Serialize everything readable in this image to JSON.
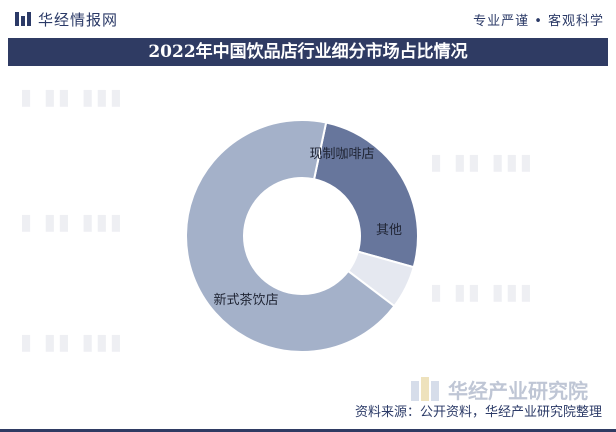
{
  "header": {
    "brand": "华经情报网",
    "slogan": "专业严谨 • 客观科学"
  },
  "chart_data": {
    "type": "pie",
    "title": "2022年中国饮品店行业细分市场占比情况",
    "categories": [
      "现制咖啡店",
      "其他",
      "新式茶饮店"
    ],
    "values": [
      26,
      6,
      68
    ],
    "colors": [
      "#67769c",
      "#e5e8f0",
      "#a4b1c9"
    ],
    "donut": true,
    "data_labels": [
      "现制咖啡店",
      "其他",
      "新式茶饮店"
    ]
  },
  "footer": {
    "logo_text": "华经产业研究院",
    "source": "资料来源：公开资料，华经产业研究院整理"
  }
}
